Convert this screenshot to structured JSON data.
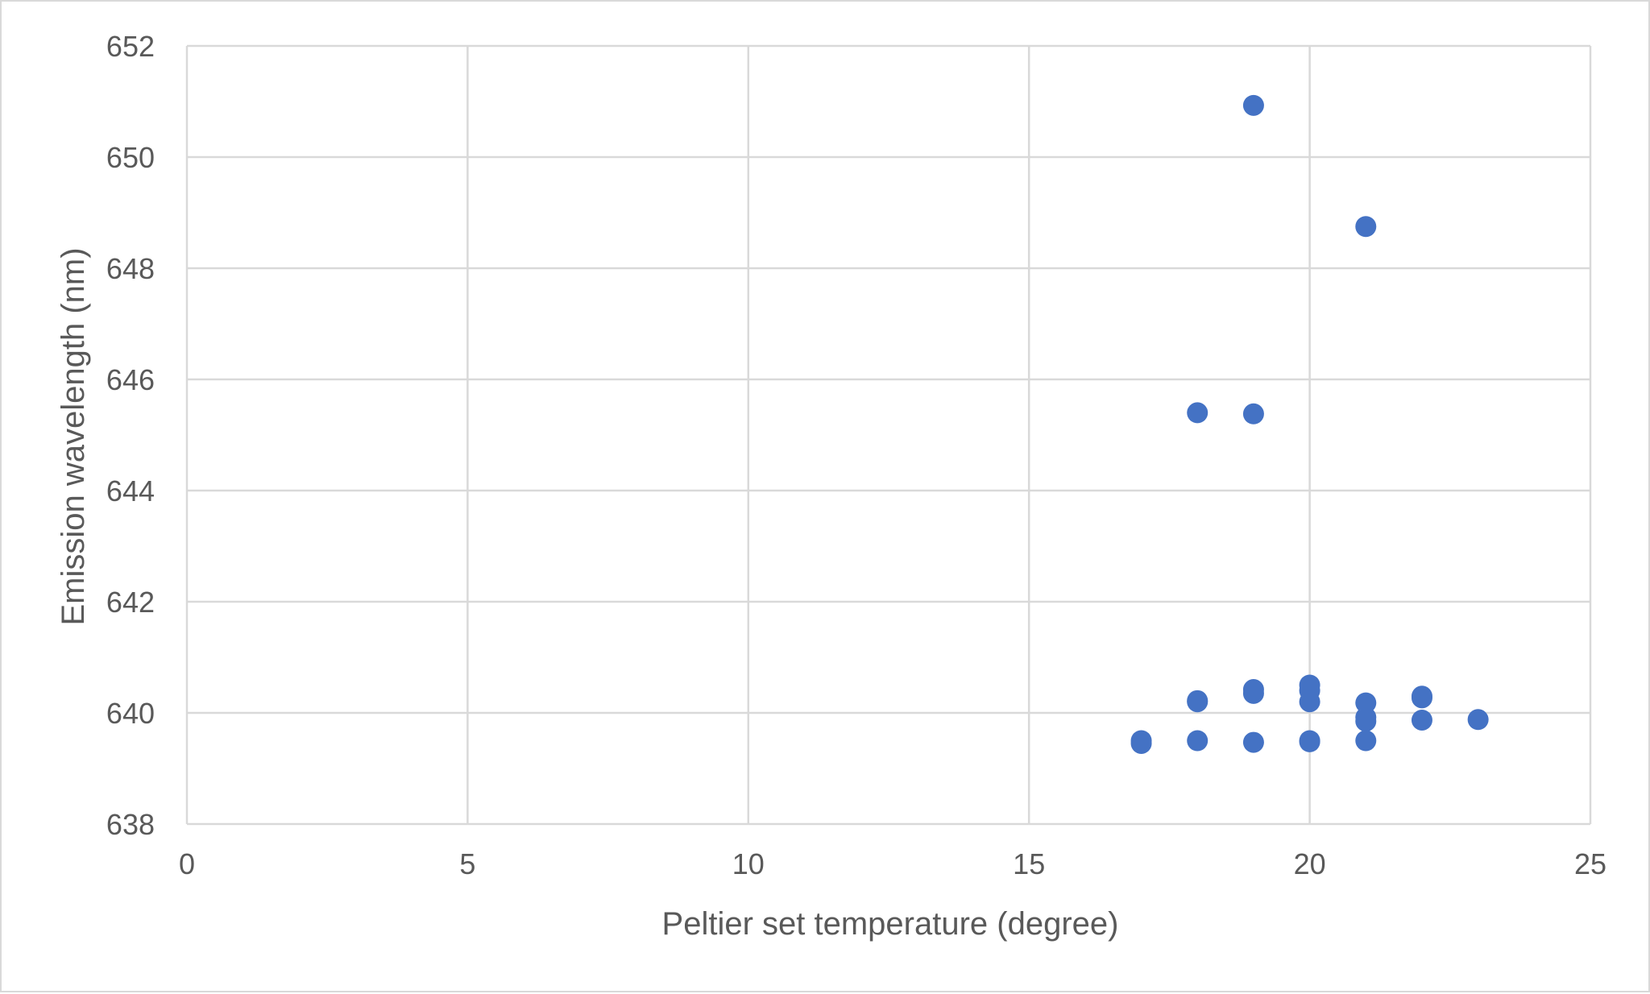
{
  "chart_data": {
    "type": "scatter",
    "title": "",
    "xlabel": "Peltier set temperature (degree)",
    "ylabel": "Emission wavelength (nm)",
    "xlim": [
      0,
      25
    ],
    "ylim": [
      638,
      652
    ],
    "xticks": [
      0,
      5,
      10,
      15,
      20,
      25
    ],
    "yticks": [
      638,
      640,
      642,
      644,
      646,
      648,
      650,
      652
    ],
    "xtick_labels": [
      "0",
      "5",
      "10",
      "15",
      "20",
      "25"
    ],
    "ytick_labels": [
      "638",
      "640",
      "642",
      "644",
      "646",
      "648",
      "650",
      "652"
    ],
    "grid": true,
    "legend": "none",
    "marker_color": "#4472c4",
    "gridline_color": "#d9d9d9",
    "series": [
      {
        "points": [
          [
            17,
            639.45
          ],
          [
            17,
            639.5
          ],
          [
            18,
            639.5
          ],
          [
            18,
            640.2
          ],
          [
            18,
            640.22
          ],
          [
            18,
            645.4
          ],
          [
            19,
            639.47
          ],
          [
            19,
            640.35
          ],
          [
            19,
            640.42
          ],
          [
            19,
            645.38
          ],
          [
            19,
            650.93
          ],
          [
            20,
            639.48
          ],
          [
            20,
            639.5
          ],
          [
            20,
            640.2
          ],
          [
            20,
            640.4
          ],
          [
            20,
            640.5
          ],
          [
            21,
            639.5
          ],
          [
            21,
            639.85
          ],
          [
            21,
            639.92
          ],
          [
            21,
            640.18
          ],
          [
            21,
            648.75
          ],
          [
            22,
            639.87
          ],
          [
            22,
            640.27
          ],
          [
            22,
            640.3
          ],
          [
            23,
            639.88
          ]
        ]
      }
    ]
  }
}
